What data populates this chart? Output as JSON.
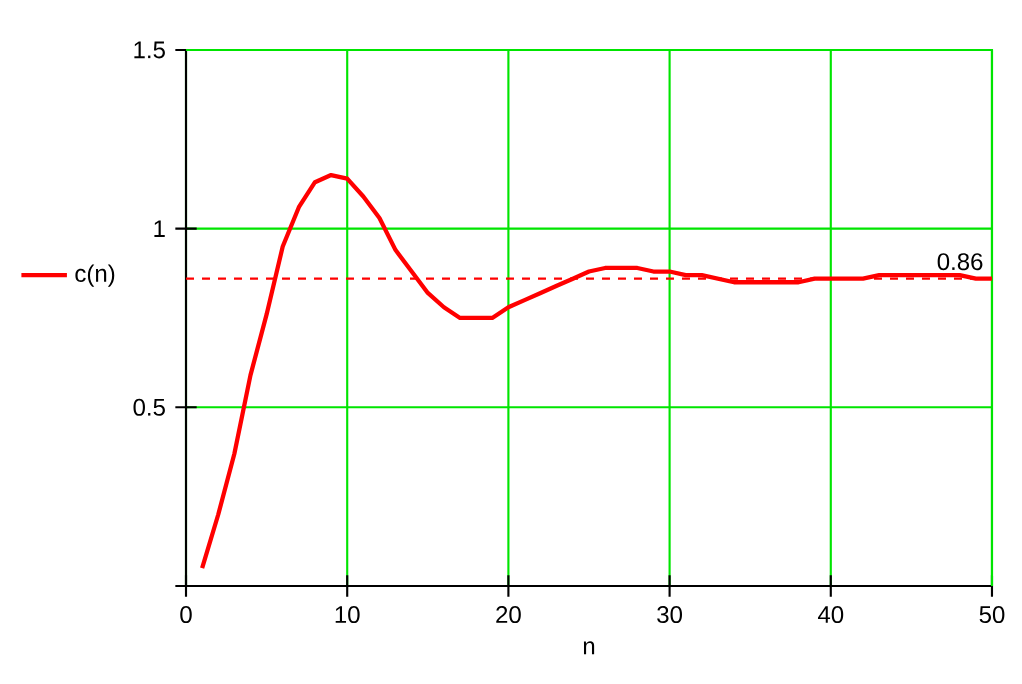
{
  "chart_data": {
    "type": "line",
    "xlabel": "n",
    "legend": "left",
    "grid": true,
    "x": [
      1,
      2,
      3,
      4,
      5,
      6,
      7,
      8,
      9,
      10,
      11,
      12,
      13,
      14,
      15,
      16,
      17,
      18,
      19,
      20,
      21,
      22,
      23,
      24,
      25,
      26,
      27,
      28,
      29,
      30,
      31,
      32,
      33,
      34,
      35,
      36,
      37,
      38,
      39,
      40,
      41,
      42,
      43,
      44,
      45,
      46,
      47,
      48,
      49,
      50
    ],
    "series": [
      {
        "name": "c(n)",
        "color": "#ff0000",
        "values": [
          0.05,
          0.2,
          0.37,
          0.59,
          0.76,
          0.95,
          1.06,
          1.13,
          1.15,
          1.14,
          1.09,
          1.03,
          0.94,
          0.88,
          0.82,
          0.78,
          0.75,
          0.75,
          0.75,
          0.78,
          0.8,
          0.82,
          0.84,
          0.86,
          0.88,
          0.89,
          0.89,
          0.89,
          0.88,
          0.88,
          0.87,
          0.87,
          0.86,
          0.85,
          0.85,
          0.85,
          0.85,
          0.85,
          0.86,
          0.86,
          0.86,
          0.86,
          0.87,
          0.87,
          0.87,
          0.87,
          0.87,
          0.87,
          0.86,
          0.86
        ]
      }
    ],
    "xlim": [
      0,
      50
    ],
    "xticks": [
      0,
      10,
      20,
      30,
      40,
      50
    ],
    "ylim": [
      0,
      1.5
    ],
    "yticks": [
      {
        "value": 0,
        "label": null
      },
      0.5,
      1,
      1.5
    ],
    "ref_lines": [
      {
        "axis": "y",
        "value": 0.86,
        "label": "0.86",
        "color": "#ff0000",
        "line_style": "dashed"
      }
    ]
  }
}
